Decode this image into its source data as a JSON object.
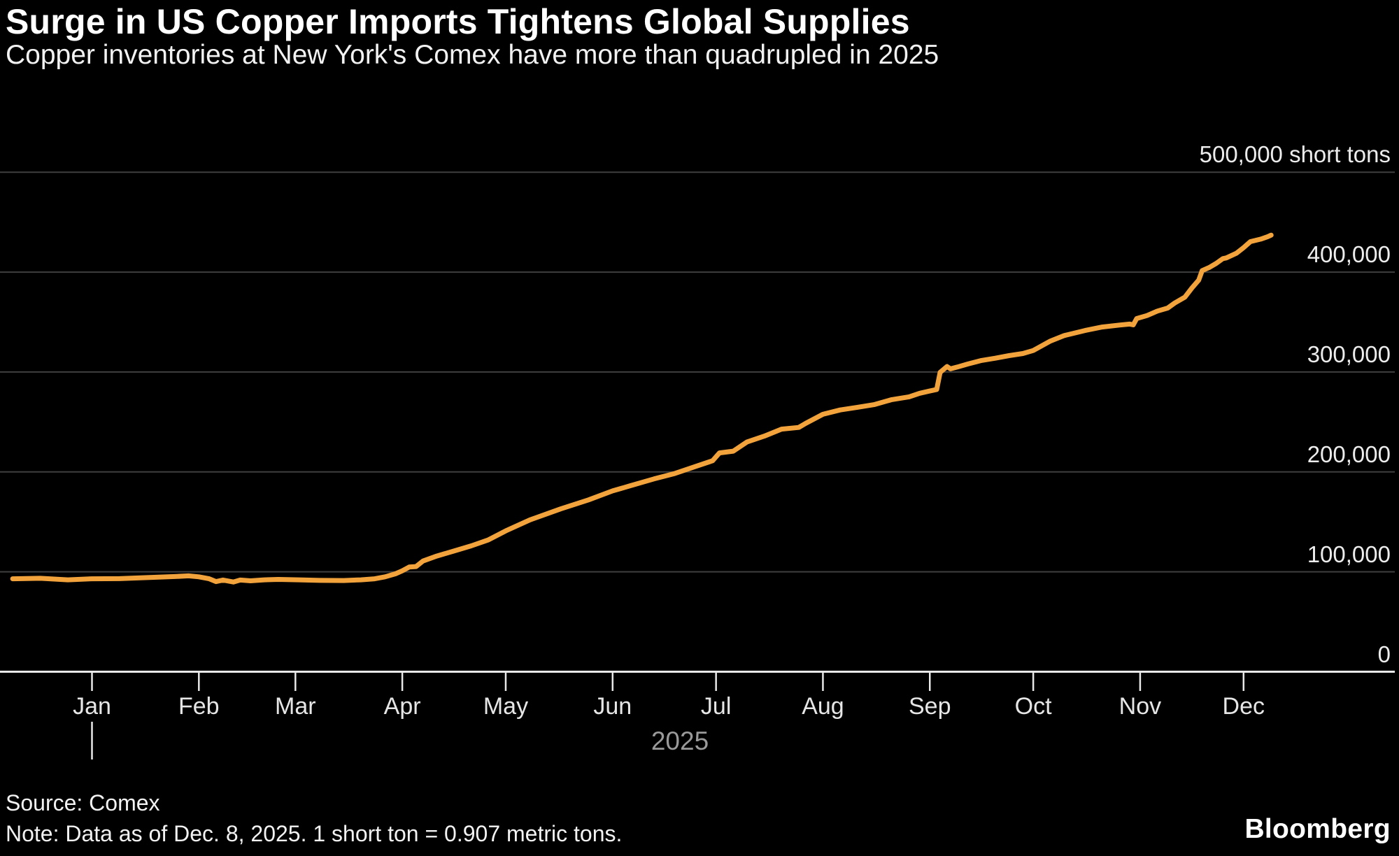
{
  "header": {
    "title": "Surge in US Copper Imports Tightens Global Supplies",
    "subtitle": "Copper inventories at New York's Comex have more than quadrupled in 2025"
  },
  "footer": {
    "source": "Source: Comex",
    "note": "Note: Data as of Dec. 8, 2025. 1 short ton = 0.907 metric tons.",
    "brand": "Bloomberg"
  },
  "chart_data": {
    "type": "line",
    "title": "Surge in US Copper Imports Tightens Global Supplies",
    "subtitle": "Copper inventories at New York's Comex have more than quadrupled in 2025",
    "unit": "short tons",
    "ylim": [
      0,
      500000
    ],
    "grid": true,
    "legend_position": "none",
    "y_axis_labels": [
      {
        "value": 0,
        "label": "0"
      },
      {
        "value": 100000,
        "label": "100,000"
      },
      {
        "value": 200000,
        "label": "200,000"
      },
      {
        "value": 300000,
        "label": "300,000"
      },
      {
        "value": 400000,
        "label": "400,000"
      },
      {
        "value": 500000,
        "label": "500,000 short tons"
      }
    ],
    "x_months": [
      "Jan",
      "Feb",
      "Mar",
      "Apr",
      "May",
      "Jun",
      "Jul",
      "Aug",
      "Sep",
      "Oct",
      "Nov",
      "Dec"
    ],
    "year_label": "2025",
    "colors": {
      "line": "#F3A33C",
      "grid": "#3f3f3f",
      "axis": "#e8e8e8",
      "background": "#000000"
    },
    "series": [
      {
        "name": "Comex copper inventories (short tons)",
        "color": "#F3A33C",
        "x_unit": "days from Jan 1, 2025",
        "points": [
          [
            -23,
            93000
          ],
          [
            -15,
            93500
          ],
          [
            -7,
            92000
          ],
          [
            0,
            93000
          ],
          [
            8,
            93200
          ],
          [
            16,
            94200
          ],
          [
            24,
            95300
          ],
          [
            28,
            96000
          ],
          [
            31,
            95000
          ],
          [
            34,
            93000
          ],
          [
            36,
            90200
          ],
          [
            38,
            91800
          ],
          [
            41,
            89800
          ],
          [
            43,
            91800
          ],
          [
            46,
            91000
          ],
          [
            50,
            92000
          ],
          [
            54,
            92400
          ],
          [
            60,
            92000
          ],
          [
            66,
            91400
          ],
          [
            73,
            91300
          ],
          [
            78,
            92000
          ],
          [
            82,
            93000
          ],
          [
            85,
            95000
          ],
          [
            88,
            98000
          ],
          [
            90,
            101000
          ],
          [
            92,
            104800
          ],
          [
            94,
            105300
          ],
          [
            96,
            110800
          ],
          [
            100,
            115800
          ],
          [
            105,
            120800
          ],
          [
            110,
            126000
          ],
          [
            115,
            132000
          ],
          [
            120,
            141000
          ],
          [
            127,
            152000
          ],
          [
            136,
            163000
          ],
          [
            144,
            172000
          ],
          [
            151,
            181000
          ],
          [
            156,
            186000
          ],
          [
            163,
            193000
          ],
          [
            169,
            198400
          ],
          [
            175,
            205400
          ],
          [
            180,
            211200
          ],
          [
            182,
            219000
          ],
          [
            186,
            220800
          ],
          [
            190,
            230000
          ],
          [
            195,
            235800
          ],
          [
            200,
            242800
          ],
          [
            205,
            244500
          ],
          [
            207,
            248600
          ],
          [
            212,
            257700
          ],
          [
            217,
            262000
          ],
          [
            222,
            264700
          ],
          [
            227,
            267500
          ],
          [
            232,
            272400
          ],
          [
            237,
            275200
          ],
          [
            240,
            278700
          ],
          [
            243,
            281000
          ],
          [
            245,
            282500
          ],
          [
            246,
            299700
          ],
          [
            248,
            305500
          ],
          [
            249,
            303200
          ],
          [
            251,
            305000
          ],
          [
            254,
            308000
          ],
          [
            258,
            311600
          ],
          [
            262,
            313800
          ],
          [
            266,
            316400
          ],
          [
            270,
            318500
          ],
          [
            273,
            321500
          ],
          [
            278,
            331000
          ],
          [
            282,
            336500
          ],
          [
            288,
            341500
          ],
          [
            293,
            345000
          ],
          [
            298,
            347000
          ],
          [
            301,
            348000
          ],
          [
            302,
            347200
          ],
          [
            303,
            353500
          ],
          [
            306,
            356500
          ],
          [
            309,
            361000
          ],
          [
            312,
            364000
          ],
          [
            314,
            369000
          ],
          [
            317,
            375000
          ],
          [
            319,
            384000
          ],
          [
            321,
            392000
          ],
          [
            322,
            401500
          ],
          [
            324,
            404500
          ],
          [
            326,
            408600
          ],
          [
            328,
            413500
          ],
          [
            329,
            414200
          ],
          [
            332,
            419000
          ],
          [
            334,
            424500
          ],
          [
            336,
            430500
          ],
          [
            339,
            433000
          ],
          [
            341,
            435500
          ],
          [
            342,
            437000
          ]
        ]
      }
    ]
  }
}
